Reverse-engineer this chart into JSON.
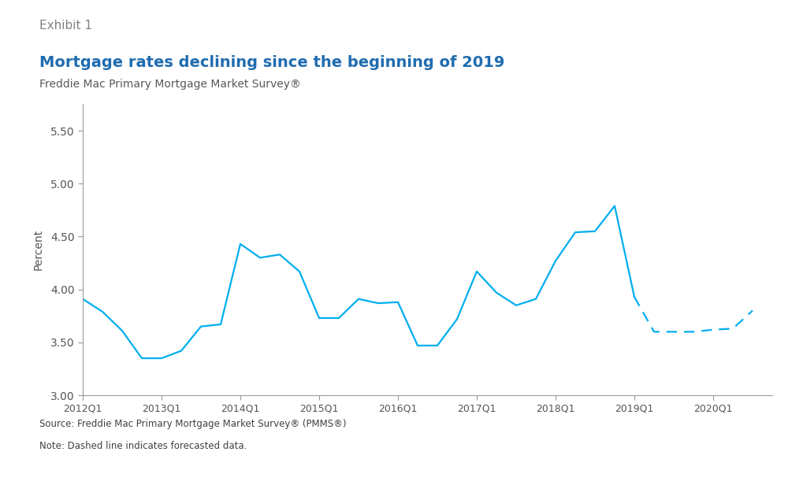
{
  "title": "Mortgage rates declining since the beginning of 2019",
  "subtitle": "Freddie Mac Primary Mortgage Market Survey®",
  "exhibit_label": "Exhibit 1",
  "ylabel": "Percent",
  "source_note": "Source: Freddie Mac Primary Mortgage Market Survey® (PMMS®)",
  "note": "Note: Dashed line indicates forecasted data.",
  "line_color": "#00AEEF",
  "ylim": [
    3.0,
    5.75
  ],
  "yticks": [
    3.0,
    3.5,
    4.0,
    4.5,
    5.0,
    5.5
  ],
  "solid_x": [
    2012.0,
    2012.25,
    2012.5,
    2012.75,
    2013.0,
    2013.25,
    2013.5,
    2013.75,
    2014.0,
    2014.25,
    2014.5,
    2014.75,
    2015.0,
    2015.25,
    2015.5,
    2015.75,
    2016.0,
    2016.25,
    2016.5,
    2016.75,
    2017.0,
    2017.25,
    2017.5,
    2017.75,
    2018.0,
    2018.25,
    2018.5,
    2018.75,
    2019.0
  ],
  "solid_y": [
    3.91,
    3.79,
    3.61,
    3.35,
    3.35,
    3.42,
    3.65,
    3.67,
    4.43,
    4.3,
    4.33,
    4.17,
    3.73,
    3.73,
    3.91,
    3.87,
    3.88,
    3.47,
    3.47,
    3.72,
    4.17,
    3.97,
    3.85,
    3.91,
    4.27,
    4.54,
    4.55,
    4.79,
    3.93
  ],
  "dashed_x": [
    2019.0,
    2019.25,
    2019.5,
    2019.75,
    2020.0,
    2020.25,
    2020.5
  ],
  "dashed_y": [
    3.93,
    3.6,
    3.6,
    3.6,
    3.62,
    3.63,
    3.8
  ],
  "xtick_positions": [
    2012.0,
    2013.0,
    2014.0,
    2015.0,
    2016.0,
    2017.0,
    2018.0,
    2019.0,
    2020.0
  ],
  "xtick_labels": [
    "2012Q1",
    "2013Q1",
    "2014Q1",
    "2015Q1",
    "2016Q1",
    "2017Q1",
    "2018Q1",
    "2019Q1",
    "2020Q1"
  ],
  "title_color": "#1F6CB0",
  "subtitle_color": "#595959",
  "exhibit_color": "#808080",
  "note_color": "#404040",
  "spine_color": "#999999",
  "separator_line_color": "#8DC641",
  "background_color": "#FFFFFF"
}
